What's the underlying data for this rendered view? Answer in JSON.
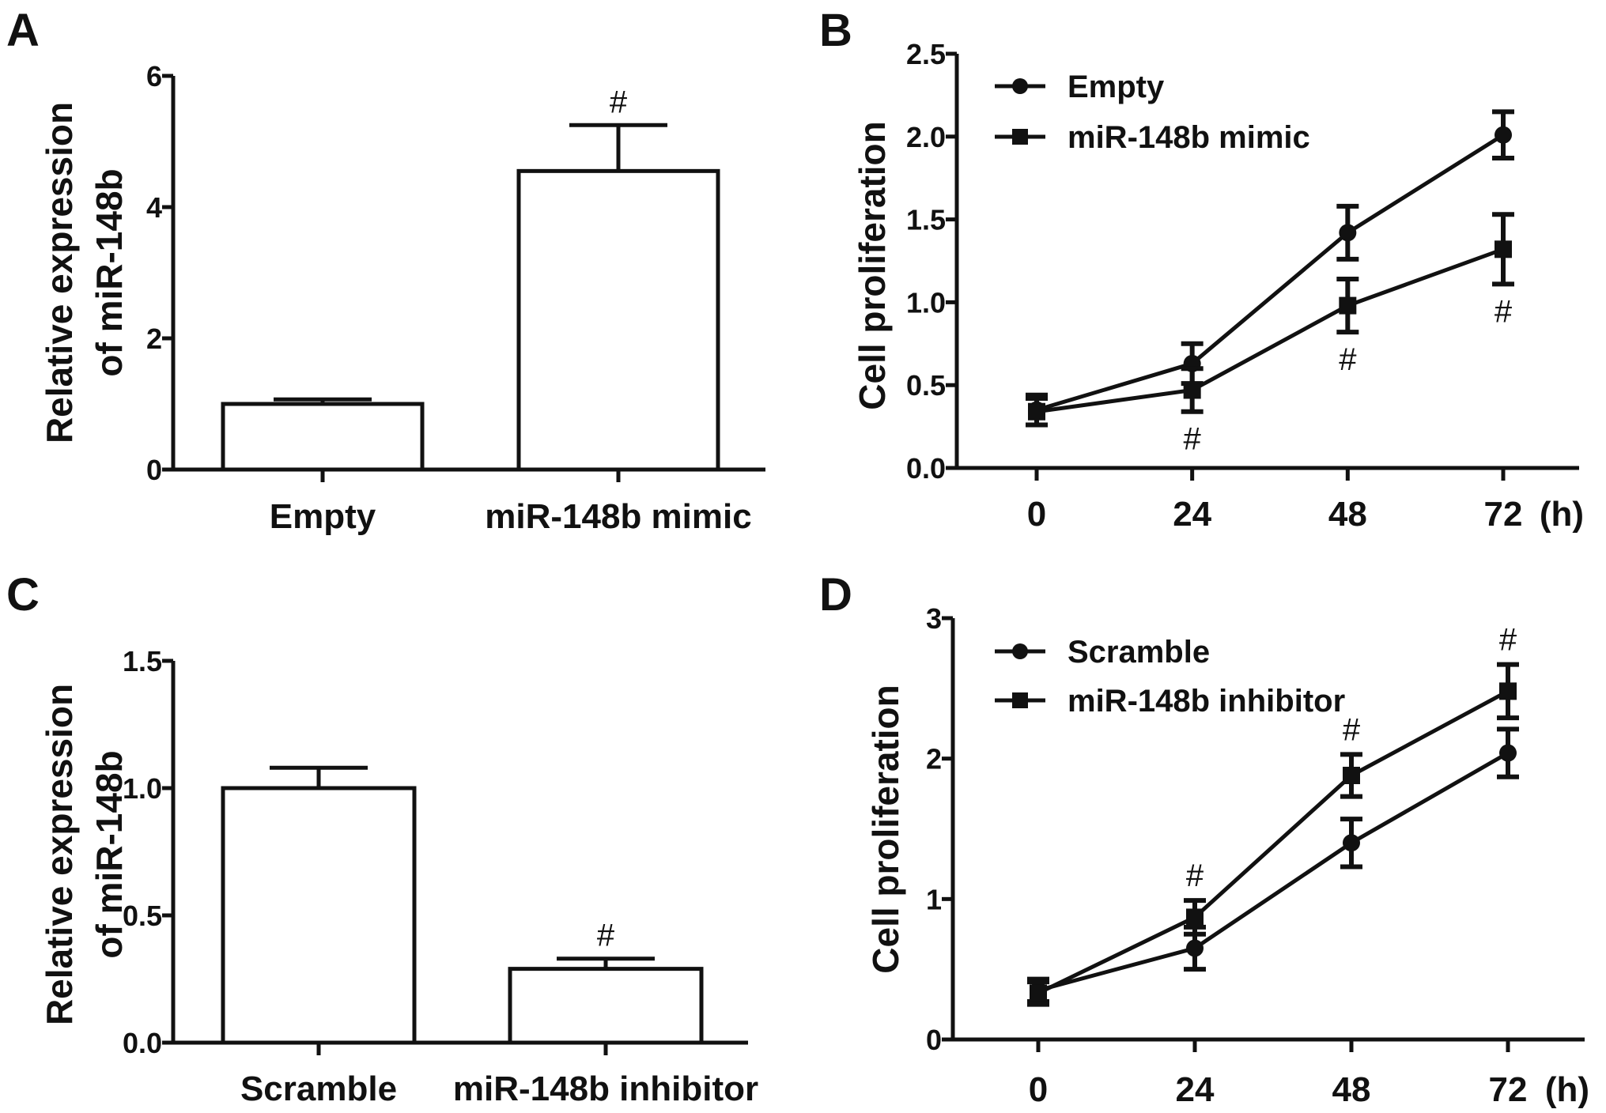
{
  "chart_data": [
    {
      "panel": "A",
      "type": "bar",
      "ylabel": [
        "Relative expression",
        "of miR-148b"
      ],
      "categories": [
        "Empty",
        "miR-148b mimic"
      ],
      "values": [
        1.0,
        4.55
      ],
      "errors": [
        0.07,
        0.7
      ],
      "significance": [
        "",
        "#"
      ],
      "ylim": [
        0,
        6
      ],
      "yticks": [
        "0",
        "2",
        "4",
        "6"
      ],
      "ytick_values": [
        0,
        2,
        4,
        6
      ],
      "color": "#ffffff",
      "edge_color": "#111111"
    },
    {
      "panel": "B",
      "type": "line",
      "ylabel": "Cell proliferation",
      "x": [
        0,
        24,
        48,
        72
      ],
      "xticks": [
        "0",
        "24",
        "48",
        "72"
      ],
      "xunit": "(h)",
      "ylim": [
        0,
        2.5
      ],
      "yticks": [
        "0.0",
        "0.5",
        "1.0",
        "1.5",
        "2.0",
        "2.5"
      ],
      "ytick_values": [
        0,
        0.5,
        1.0,
        1.5,
        2.0,
        2.5
      ],
      "legend": "top-left",
      "series": [
        {
          "name": "Empty",
          "marker": "circle",
          "values": [
            0.35,
            0.63,
            1.42,
            2.01
          ],
          "errors": [
            0.09,
            0.12,
            0.16,
            0.14
          ]
        },
        {
          "name": "miR-148b mimic",
          "marker": "square",
          "values": [
            0.34,
            0.47,
            0.98,
            1.32
          ],
          "errors": [
            0.08,
            0.13,
            0.16,
            0.21
          ],
          "significance": [
            "",
            "#",
            "#",
            "#"
          ],
          "significance_side": "below"
        }
      ]
    },
    {
      "panel": "C",
      "type": "bar",
      "ylabel": [
        "Relative expression",
        "of miR-148b"
      ],
      "categories": [
        "Scramble",
        "miR-148b inhibitor"
      ],
      "values": [
        1.0,
        0.29
      ],
      "errors": [
        0.08,
        0.04
      ],
      "significance": [
        "",
        "#"
      ],
      "ylim": [
        0,
        1.5
      ],
      "yticks": [
        "0.0",
        "0.5",
        "1.0",
        "1.5"
      ],
      "ytick_values": [
        0,
        0.5,
        1.0,
        1.5
      ],
      "color": "#ffffff",
      "edge_color": "#111111"
    },
    {
      "panel": "D",
      "type": "line",
      "ylabel": "Cell proliferation",
      "x": [
        0,
        24,
        48,
        72
      ],
      "xticks": [
        "0",
        "24",
        "48",
        "72"
      ],
      "xunit": "(h)",
      "ylim": [
        0,
        3
      ],
      "yticks": [
        "0",
        "1",
        "2",
        "3"
      ],
      "ytick_values": [
        0,
        1,
        2,
        3
      ],
      "legend": "top-left",
      "series": [
        {
          "name": "Scramble",
          "marker": "circle",
          "values": [
            0.35,
            0.65,
            1.4,
            2.04
          ],
          "errors": [
            0.08,
            0.15,
            0.17,
            0.17
          ]
        },
        {
          "name": "miR-148b inhibitor",
          "marker": "square",
          "values": [
            0.33,
            0.87,
            1.88,
            2.48
          ],
          "errors": [
            0.08,
            0.12,
            0.15,
            0.19
          ],
          "significance": [
            "",
            "#",
            "#",
            "#"
          ],
          "significance_side": "above"
        }
      ]
    }
  ]
}
